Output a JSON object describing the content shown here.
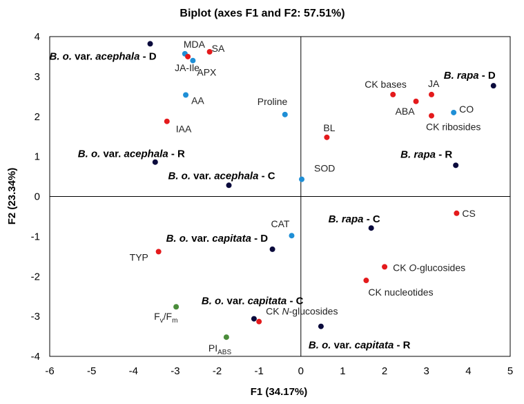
{
  "chart_data": {
    "type": "scatter",
    "title": "Biplot (axes F1 and F2: 57.51%)",
    "xlabel": "F1 (34.17%)",
    "ylabel": "F2 (23.34%)",
    "xlim": [
      -6,
      5
    ],
    "ylim": [
      -4,
      4
    ],
    "xticks": [
      "-6",
      "-5",
      "-4",
      "-3",
      "-2",
      "-1",
      "0",
      "1",
      "2",
      "3",
      "4",
      "5"
    ],
    "yticks": [
      "-4",
      "-3",
      "-2",
      "-1",
      "0",
      "1",
      "2",
      "3",
      "4"
    ],
    "grid": false,
    "colors": {
      "treatment": "#0a0a3c",
      "hormone": "#e41a1c",
      "antioxidant": "#1f8fd6",
      "photosynthesis": "#4a8c3a"
    },
    "points": [
      {
        "label": "B. o. var. acephala - D",
        "x": -3.6,
        "y": 3.82,
        "group": "treatment"
      },
      {
        "label": "B. o. var. acephala - R",
        "x": -3.48,
        "y": 0.86,
        "group": "treatment"
      },
      {
        "label": "B. o. var. acephala - C",
        "x": -1.72,
        "y": 0.28,
        "group": "treatment"
      },
      {
        "label": "B. rapa - D",
        "x": 4.6,
        "y": 2.77,
        "group": "treatment"
      },
      {
        "label": "B. rapa - R",
        "x": 3.7,
        "y": 0.78,
        "group": "treatment"
      },
      {
        "label": "B. rapa - C",
        "x": 1.68,
        "y": -0.79,
        "group": "treatment"
      },
      {
        "label": "B. o. var. capitata - D",
        "x": -0.68,
        "y": -1.32,
        "group": "treatment"
      },
      {
        "label": "B. o. var. capitata - C",
        "x": -1.12,
        "y": -3.06,
        "group": "treatment"
      },
      {
        "label": "B. o. var. capitata - R",
        "x": 0.48,
        "y": -3.25,
        "group": "treatment"
      },
      {
        "label": "MDA",
        "x": -2.77,
        "y": 3.57,
        "group": "antioxidant"
      },
      {
        "label": "SA",
        "x": -2.18,
        "y": 3.62,
        "group": "hormone"
      },
      {
        "label": "JA-Ile",
        "x": -2.7,
        "y": 3.5,
        "group": "hormone"
      },
      {
        "label": "APX",
        "x": -2.58,
        "y": 3.4,
        "group": "antioxidant"
      },
      {
        "label": "AA",
        "x": -2.75,
        "y": 2.54,
        "group": "antioxidant"
      },
      {
        "label": "IAA",
        "x": -3.2,
        "y": 1.88,
        "group": "hormone"
      },
      {
        "label": "Proline",
        "x": -0.38,
        "y": 2.05,
        "group": "antioxidant"
      },
      {
        "label": "BL",
        "x": 0.62,
        "y": 1.48,
        "group": "hormone"
      },
      {
        "label": "SOD",
        "x": 0.02,
        "y": 0.43,
        "group": "antioxidant"
      },
      {
        "label": "CK bases",
        "x": 2.2,
        "y": 2.55,
        "group": "hormone"
      },
      {
        "label": "JA",
        "x": 3.12,
        "y": 2.55,
        "group": "hormone"
      },
      {
        "label": "ABA",
        "x": 2.75,
        "y": 2.38,
        "group": "hormone"
      },
      {
        "label": "CO",
        "x": 3.65,
        "y": 2.1,
        "group": "antioxidant"
      },
      {
        "label": "CK ribosides",
        "x": 3.12,
        "y": 2.02,
        "group": "hormone"
      },
      {
        "label": "CS",
        "x": 3.72,
        "y": -0.42,
        "group": "hormone"
      },
      {
        "label": "CAT",
        "x": -0.22,
        "y": -0.98,
        "group": "antioxidant"
      },
      {
        "label": "TYP",
        "x": -3.4,
        "y": -1.38,
        "group": "hormone"
      },
      {
        "label": "CK O-glucosides",
        "x": 2.0,
        "y": -1.76,
        "group": "hormone"
      },
      {
        "label": "CK nucleotides",
        "x": 1.56,
        "y": -2.1,
        "group": "hormone"
      },
      {
        "label": "Fv/Fm",
        "x": -2.98,
        "y": -2.76,
        "group": "photosynthesis"
      },
      {
        "label": "CK N-glucosides",
        "x": -1.0,
        "y": -3.13,
        "group": "hormone"
      },
      {
        "label": "PIABS",
        "x": -1.78,
        "y": -3.52,
        "group": "photosynthesis"
      }
    ]
  }
}
